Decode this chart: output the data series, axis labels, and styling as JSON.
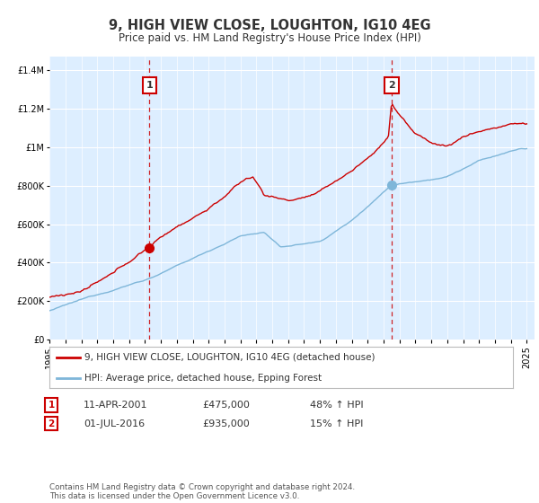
{
  "title": "9, HIGH VIEW CLOSE, LOUGHTON, IG10 4EG",
  "subtitle": "Price paid vs. HM Land Registry's House Price Index (HPI)",
  "ytick_values": [
    0,
    200000,
    400000,
    600000,
    800000,
    1000000,
    1200000,
    1400000
  ],
  "ylim": [
    0,
    1470000
  ],
  "sale1": {
    "date_num": 2001.28,
    "price": 475000,
    "label": "1",
    "date_str": "11-APR-2001",
    "pct": "48% ↑ HPI"
  },
  "sale2": {
    "date_num": 2016.5,
    "price": 935000,
    "label": "2",
    "date_str": "01-JUL-2016",
    "pct": "15% ↑ HPI"
  },
  "hpi_line_color": "#7eb6d9",
  "price_line_color": "#cc0000",
  "dashed_line_color": "#cc0000",
  "background_color": "#ffffff",
  "plot_bg_color": "#ddeeff",
  "legend_label_red": "9, HIGH VIEW CLOSE, LOUGHTON, IG10 4EG (detached house)",
  "legend_label_blue": "HPI: Average price, detached house, Epping Forest",
  "footer": "Contains HM Land Registry data © Crown copyright and database right 2024.\nThis data is licensed under the Open Government Licence v3.0.",
  "xmin": 1995,
  "xmax": 2025.5
}
